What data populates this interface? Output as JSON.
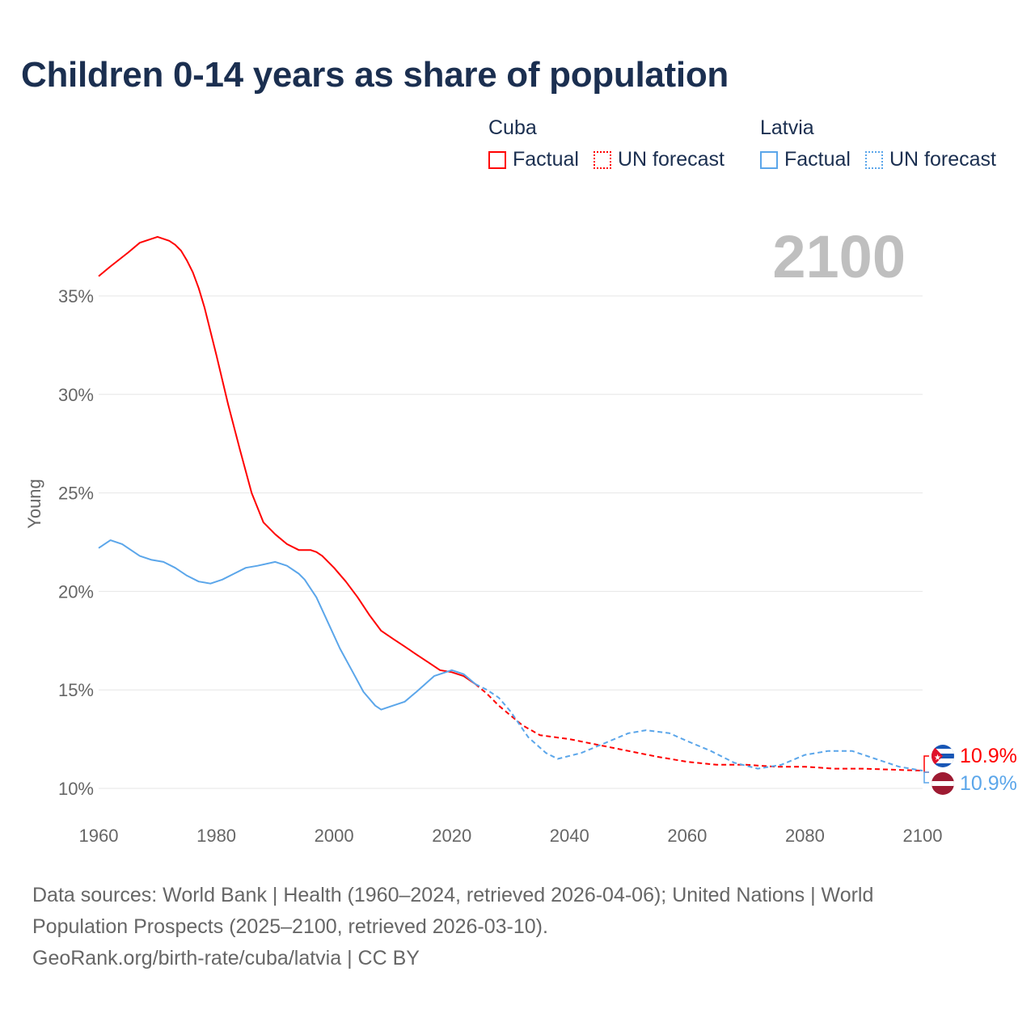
{
  "title": "Children 0-14 years as share of population",
  "legend": [
    {
      "name": "Cuba",
      "factual": "Factual",
      "forecast": "UN forecast",
      "color": "#ff0000"
    },
    {
      "name": "Latvia",
      "factual": "Factual",
      "forecast": "UN forecast",
      "color": "#5ba6ea"
    }
  ],
  "year_label": "2100",
  "end_labels": {
    "cuba": "10.9%",
    "latvia": "10.9%"
  },
  "footer": {
    "line1": "Data sources: World Bank | Health (1960–2024, retrieved 2026-04-06); United Nations | World",
    "line2": "Population Prospects (2025–2100, retrieved 2026-03-10).",
    "line3": "GeoRank.org/birth-rate/cuba/latvia | CC BY"
  },
  "chart_data": {
    "type": "line",
    "title": "Children 0-14 years as share of population",
    "xlabel": "",
    "ylabel": "Young",
    "xlim": [
      1960,
      2100
    ],
    "ylim": [
      10,
      37
    ],
    "x_ticks": [
      1960,
      1980,
      2000,
      2020,
      2040,
      2060,
      2080,
      2100
    ],
    "y_ticks": [
      10,
      15,
      20,
      25,
      30,
      35
    ],
    "y_tick_labels": [
      "10%",
      "15%",
      "20%",
      "25%",
      "30%",
      "35%"
    ],
    "grid": true,
    "legend_position": "top-right",
    "series": [
      {
        "name": "Cuba Factual",
        "color": "#ff0000",
        "dashed": false,
        "x": [
          1960,
          1962,
          1965,
          1967,
          1970,
          1972,
          1973,
          1974,
          1975,
          1976,
          1977,
          1978,
          1980,
          1982,
          1984,
          1986,
          1988,
          1990,
          1992,
          1994,
          1996,
          1997,
          1998,
          2000,
          2002,
          2004,
          2006,
          2008,
          2010,
          2012,
          2014,
          2016,
          2018,
          2020,
          2022,
          2024
        ],
        "y": [
          36.0,
          36.5,
          37.2,
          37.7,
          38.0,
          37.8,
          37.6,
          37.3,
          36.8,
          36.2,
          35.4,
          34.4,
          32.0,
          29.5,
          27.2,
          25.0,
          23.5,
          22.9,
          22.4,
          22.1,
          22.1,
          22.0,
          21.8,
          21.2,
          20.5,
          19.7,
          18.8,
          18.0,
          17.6,
          17.2,
          16.8,
          16.4,
          16.0,
          15.9,
          15.7,
          15.3
        ]
      },
      {
        "name": "Cuba UN forecast",
        "color": "#ff0000",
        "dashed": true,
        "x": [
          2024,
          2026,
          2028,
          2030,
          2032,
          2035,
          2040,
          2045,
          2050,
          2055,
          2060,
          2065,
          2070,
          2075,
          2080,
          2085,
          2090,
          2095,
          2100
        ],
        "y": [
          15.3,
          14.8,
          14.2,
          13.7,
          13.2,
          12.7,
          12.5,
          12.2,
          11.9,
          11.6,
          11.35,
          11.2,
          11.2,
          11.1,
          11.1,
          11.0,
          11.0,
          10.95,
          10.9
        ]
      },
      {
        "name": "Latvia Factual",
        "color": "#5ba6ea",
        "dashed": false,
        "x": [
          1960,
          1962,
          1964,
          1967,
          1969,
          1971,
          1973,
          1975,
          1977,
          1979,
          1981,
          1983,
          1985,
          1987,
          1990,
          1992,
          1994,
          1995,
          1997,
          1999,
          2001,
          2003,
          2005,
          2007,
          2008,
          2010,
          2012,
          2014,
          2017,
          2020,
          2022,
          2024
        ],
        "y": [
          22.2,
          22.6,
          22.4,
          21.8,
          21.6,
          21.5,
          21.2,
          20.8,
          20.5,
          20.4,
          20.6,
          20.9,
          21.2,
          21.3,
          21.5,
          21.3,
          20.9,
          20.6,
          19.7,
          18.4,
          17.1,
          16.0,
          14.9,
          14.2,
          14.0,
          14.2,
          14.4,
          14.9,
          15.7,
          16.0,
          15.8,
          15.3
        ]
      },
      {
        "name": "Latvia UN forecast",
        "color": "#5ba6ea",
        "dashed": true,
        "x": [
          2024,
          2026,
          2028,
          2030,
          2033,
          2036,
          2038,
          2042,
          2046,
          2050,
          2053,
          2057,
          2060,
          2064,
          2068,
          2072,
          2076,
          2080,
          2084,
          2088,
          2092,
          2096,
          2100
        ],
        "y": [
          15.3,
          15.0,
          14.6,
          13.9,
          12.6,
          11.8,
          11.5,
          11.8,
          12.3,
          12.8,
          12.95,
          12.8,
          12.4,
          11.9,
          11.3,
          11.0,
          11.2,
          11.7,
          11.9,
          11.9,
          11.5,
          11.1,
          10.9
        ]
      }
    ]
  }
}
